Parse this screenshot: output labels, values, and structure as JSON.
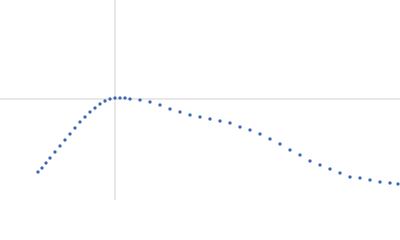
{
  "chart_data": {
    "type": "scatter",
    "x": [
      38,
      42,
      46,
      50,
      55,
      60,
      65,
      70,
      75,
      80,
      85,
      90,
      95,
      100,
      105,
      110,
      115,
      120,
      125,
      130,
      140,
      150,
      160,
      170,
      180,
      190,
      200,
      210,
      220,
      230,
      240,
      250,
      260,
      270,
      280,
      290,
      300,
      310,
      320,
      330,
      340,
      350,
      360,
      370,
      380,
      390,
      398
    ],
    "series": [
      {
        "color": "#3a66b5",
        "values": [
          28,
          32,
          37,
          42,
          48,
          54,
          60,
          66,
          72,
          78,
          83,
          88,
          92,
          96,
          99,
          101,
          102,
          102,
          102,
          101,
          100,
          98,
          95,
          91,
          88,
          85,
          83,
          81,
          79,
          77,
          73,
          70,
          66,
          61,
          56,
          50,
          45,
          39,
          35,
          31,
          27,
          23,
          22,
          20,
          18,
          17,
          16
        ]
      }
    ],
    "xlim": [
      0,
      400
    ],
    "ylim": [
      0,
      200
    ],
    "crosshair_x": 115,
    "crosshair_y": 101,
    "crosshair_color": "#d0d0d0"
  }
}
